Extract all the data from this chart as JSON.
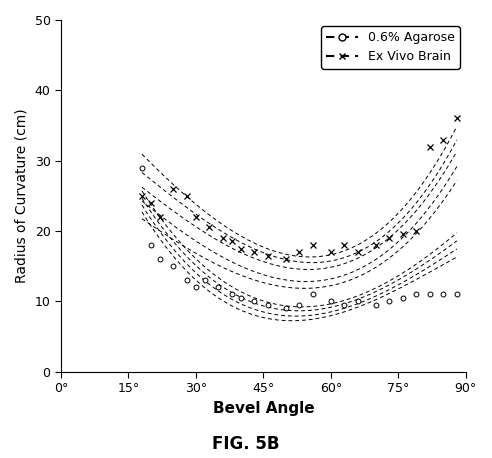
{
  "title": "FIG. 5B",
  "xlabel": "Bevel Angle",
  "ylabel": "Radius of Curvature (cm)",
  "xlim": [
    0,
    90
  ],
  "ylim": [
    0,
    50
  ],
  "xticks": [
    0,
    15,
    30,
    45,
    60,
    75,
    90
  ],
  "yticks": [
    0,
    10,
    20,
    30,
    40,
    50
  ],
  "xtick_labels": [
    "0°",
    "15°",
    "30°",
    "45°",
    "60°",
    "75°",
    "90°"
  ],
  "legend_labels": [
    "0.6% Agarose",
    "Ex Vivo Brain"
  ],
  "agarose_scatter_x": [
    18,
    20,
    22,
    25,
    28,
    30,
    32,
    35,
    38,
    40,
    43,
    46,
    50,
    53,
    56,
    60,
    63,
    66,
    70,
    73,
    76,
    79,
    82,
    85,
    88
  ],
  "agarose_scatter_y": [
    29,
    18,
    16,
    15,
    13,
    12,
    13,
    12,
    11,
    10.5,
    10,
    9.5,
    9,
    9.5,
    11,
    10,
    9.5,
    10,
    9.5,
    10,
    10.5,
    11,
    11,
    11,
    11
  ],
  "agarose_upper1_x": [
    18,
    22,
    26,
    30,
    35,
    40,
    45,
    50,
    55,
    60,
    65,
    70,
    75,
    80,
    85,
    88
  ],
  "agarose_upper1_y": [
    28,
    21,
    17,
    14.5,
    13,
    12,
    11,
    10.5,
    10,
    10,
    10.5,
    11,
    12.5,
    15,
    18,
    21
  ],
  "agarose_upper2_x": [
    18,
    22,
    26,
    30,
    35,
    40,
    45,
    50,
    55,
    60,
    65,
    70,
    75,
    80,
    85,
    88
  ],
  "agarose_upper2_y": [
    27,
    20,
    16,
    13.5,
    12,
    11,
    10.5,
    10,
    9.5,
    9.5,
    10,
    10.5,
    12,
    14,
    17,
    20
  ],
  "agarose_mid_x": [
    18,
    22,
    26,
    30,
    35,
    40,
    45,
    50,
    55,
    60,
    65,
    70,
    75,
    80,
    85,
    88
  ],
  "agarose_mid_y": [
    26,
    19,
    15,
    12.5,
    11,
    10,
    9.5,
    9,
    9,
    9,
    9.5,
    10,
    11,
    13,
    16,
    19
  ],
  "agarose_lower1_x": [
    18,
    22,
    26,
    30,
    35,
    40,
    45,
    50,
    55,
    60,
    65,
    70,
    75,
    80,
    85,
    88
  ],
  "agarose_lower1_y": [
    25,
    18,
    14,
    11.5,
    10,
    9,
    8.5,
    8.5,
    8.5,
    8.5,
    9,
    9.5,
    10.5,
    12,
    15,
    18
  ],
  "brain_scatter_x": [
    18,
    20,
    22,
    25,
    28,
    30,
    33,
    36,
    38,
    40,
    43,
    46,
    50,
    53,
    56,
    60,
    63,
    66,
    70,
    73,
    76,
    79,
    82,
    85,
    88
  ],
  "brain_scatter_y": [
    25,
    24,
    22,
    26,
    25,
    22,
    20.5,
    19,
    18.5,
    17.5,
    17,
    16.5,
    16,
    17,
    18,
    17,
    18,
    17,
    18,
    19,
    19.5,
    20,
    32,
    33,
    36
  ],
  "brain_upper1_x": [
    18,
    22,
    26,
    30,
    35,
    40,
    45,
    50,
    55,
    60,
    65,
    70,
    75,
    80,
    85,
    88
  ],
  "brain_upper1_y": [
    33,
    28,
    24.5,
    22,
    20.5,
    19.5,
    18.5,
    18,
    17.5,
    17.5,
    18,
    19,
    21,
    24.5,
    31,
    37
  ],
  "brain_upper2_x": [
    18,
    22,
    26,
    30,
    35,
    40,
    45,
    50,
    55,
    60,
    65,
    70,
    75,
    80,
    85,
    88
  ],
  "brain_upper2_y": [
    30,
    26,
    23,
    21,
    19.5,
    18.5,
    17.5,
    17,
    16.5,
    16.5,
    17,
    18,
    20,
    23,
    29,
    35
  ],
  "brain_mid_x": [
    18,
    22,
    26,
    30,
    35,
    40,
    45,
    50,
    55,
    60,
    65,
    70,
    75,
    80,
    85,
    88
  ],
  "brain_mid_y": [
    28,
    24,
    21,
    19,
    18,
    17,
    16.5,
    16,
    15.5,
    15.5,
    16,
    17,
    19,
    22,
    28,
    33
  ],
  "brain_lower1_x": [
    18,
    22,
    26,
    30,
    35,
    40,
    45,
    50,
    55,
    60,
    65,
    70,
    75,
    80,
    85,
    88
  ],
  "brain_lower1_y": [
    26,
    22,
    19,
    17,
    16,
    15,
    14.5,
    14,
    14,
    14,
    14.5,
    15.5,
    17,
    20,
    26,
    31
  ],
  "brain_lower2_x": [
    18,
    22,
    26,
    30,
    35,
    40,
    45,
    50,
    55,
    60,
    65,
    70,
    75,
    80,
    85,
    88
  ],
  "brain_lower2_y": [
    23,
    20,
    17.5,
    15.5,
    14.5,
    13.5,
    13,
    13,
    13,
    13,
    13.5,
    14.5,
    16,
    18.5,
    24,
    29
  ],
  "background_color": "#ffffff"
}
